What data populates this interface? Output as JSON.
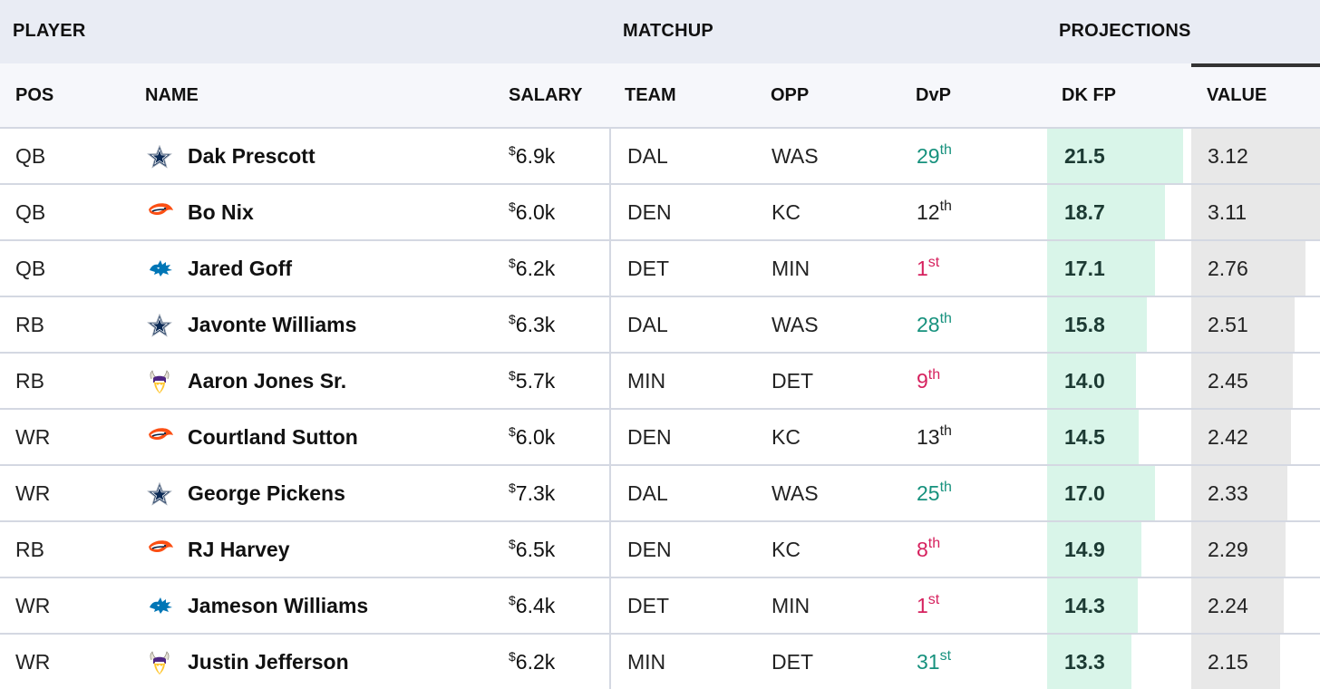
{
  "group_headers": {
    "player": "PLAYER",
    "matchup": "MATCHUP",
    "projections": "PROJECTIONS"
  },
  "columns": {
    "pos": "POS",
    "name": "NAME",
    "salary": "SALARY",
    "team": "TEAM",
    "opp": "OPP",
    "dvp": "DvP",
    "dkfp": "DK FP",
    "value": "VALUE"
  },
  "colors": {
    "dvp_good": "#16917d",
    "dvp_bad": "#d6215e",
    "fp_bar": "#d9f5e9",
    "value_bar": "#e8e8e8"
  },
  "rows": [
    {
      "pos": "QB",
      "logo": "cowboys-logo-icon",
      "name": "Dak Prescott",
      "salary_symbol": "$",
      "salary": "6.9k",
      "team": "DAL",
      "opp": "WAS",
      "dvp_num": "29",
      "dvp_suffix": "th",
      "dvp_tone": "good",
      "dkfp": "21.5",
      "value": "3.12"
    },
    {
      "pos": "QB",
      "logo": "broncos-logo-icon",
      "name": "Bo Nix",
      "salary_symbol": "$",
      "salary": "6.0k",
      "team": "DEN",
      "opp": "KC",
      "dvp_num": "12",
      "dvp_suffix": "th",
      "dvp_tone": "mid",
      "dkfp": "18.7",
      "value": "3.11"
    },
    {
      "pos": "QB",
      "logo": "lions-logo-icon",
      "name": "Jared Goff",
      "salary_symbol": "$",
      "salary": "6.2k",
      "team": "DET",
      "opp": "MIN",
      "dvp_num": "1",
      "dvp_suffix": "st",
      "dvp_tone": "bad",
      "dkfp": "17.1",
      "value": "2.76"
    },
    {
      "pos": "RB",
      "logo": "cowboys-logo-icon",
      "name": "Javonte Williams",
      "salary_symbol": "$",
      "salary": "6.3k",
      "team": "DAL",
      "opp": "WAS",
      "dvp_num": "28",
      "dvp_suffix": "th",
      "dvp_tone": "good",
      "dkfp": "15.8",
      "value": "2.51"
    },
    {
      "pos": "RB",
      "logo": "vikings-logo-icon",
      "name": "Aaron Jones Sr.",
      "salary_symbol": "$",
      "salary": "5.7k",
      "team": "MIN",
      "opp": "DET",
      "dvp_num": "9",
      "dvp_suffix": "th",
      "dvp_tone": "bad",
      "dkfp": "14.0",
      "value": "2.45"
    },
    {
      "pos": "WR",
      "logo": "broncos-logo-icon",
      "name": "Courtland Sutton",
      "salary_symbol": "$",
      "salary": "6.0k",
      "team": "DEN",
      "opp": "KC",
      "dvp_num": "13",
      "dvp_suffix": "th",
      "dvp_tone": "mid",
      "dkfp": "14.5",
      "value": "2.42"
    },
    {
      "pos": "WR",
      "logo": "cowboys-logo-icon",
      "name": "George Pickens",
      "salary_symbol": "$",
      "salary": "7.3k",
      "team": "DAL",
      "opp": "WAS",
      "dvp_num": "25",
      "dvp_suffix": "th",
      "dvp_tone": "good",
      "dkfp": "17.0",
      "value": "2.33"
    },
    {
      "pos": "RB",
      "logo": "broncos-logo-icon",
      "name": "RJ Harvey",
      "salary_symbol": "$",
      "salary": "6.5k",
      "team": "DEN",
      "opp": "KC",
      "dvp_num": "8",
      "dvp_suffix": "th",
      "dvp_tone": "bad",
      "dkfp": "14.9",
      "value": "2.29"
    },
    {
      "pos": "WR",
      "logo": "lions-logo-icon",
      "name": "Jameson Williams",
      "salary_symbol": "$",
      "salary": "6.4k",
      "team": "DET",
      "opp": "MIN",
      "dvp_num": "1",
      "dvp_suffix": "st",
      "dvp_tone": "bad",
      "dkfp": "14.3",
      "value": "2.24"
    },
    {
      "pos": "WR",
      "logo": "vikings-logo-icon",
      "name": "Justin Jefferson",
      "salary_symbol": "$",
      "salary": "6.2k",
      "team": "MIN",
      "opp": "DET",
      "dvp_num": "31",
      "dvp_suffix": "st",
      "dvp_tone": "good",
      "dkfp": "13.3",
      "value": "2.15"
    }
  ]
}
